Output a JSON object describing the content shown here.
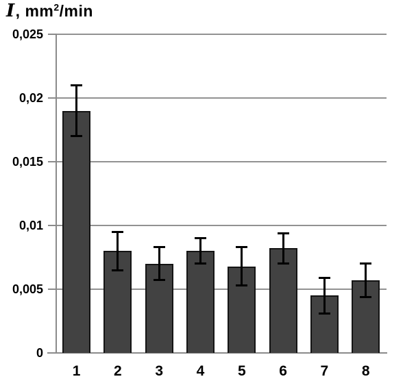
{
  "chart_data": {
    "type": "bar",
    "title": "I, mm²/min",
    "title_parts": {
      "symbol": "I",
      "unit_pre": ", mm",
      "sup": "2",
      "unit_post": "/min"
    },
    "categories": [
      "1",
      "2",
      "3",
      "4",
      "5",
      "6",
      "7",
      "8"
    ],
    "values": [
      0.019,
      0.008,
      0.007,
      0.008,
      0.0068,
      0.0082,
      0.0045,
      0.0057
    ],
    "errors": [
      0.002,
      0.0015,
      0.0013,
      0.001,
      0.0015,
      0.0012,
      0.0014,
      0.0013
    ],
    "ylim": [
      0,
      0.025
    ],
    "yticks": [
      0,
      0.005,
      0.01,
      0.015,
      0.02,
      0.025
    ],
    "ytick_labels": [
      "0",
      "0,005",
      "0,01",
      "0,015",
      "0,02",
      "0,025"
    ],
    "xlabel": "",
    "ylabel": "I, mm²/min",
    "grid": true,
    "legend": false,
    "decimal_separator": ",",
    "colors": {
      "bar_fill": "#424242",
      "bar_border": "#141414",
      "gridline": "#919191",
      "axis": "#8a8a8a",
      "error_bar": "#000000",
      "text": "#000000",
      "background": "#ffffff"
    }
  }
}
